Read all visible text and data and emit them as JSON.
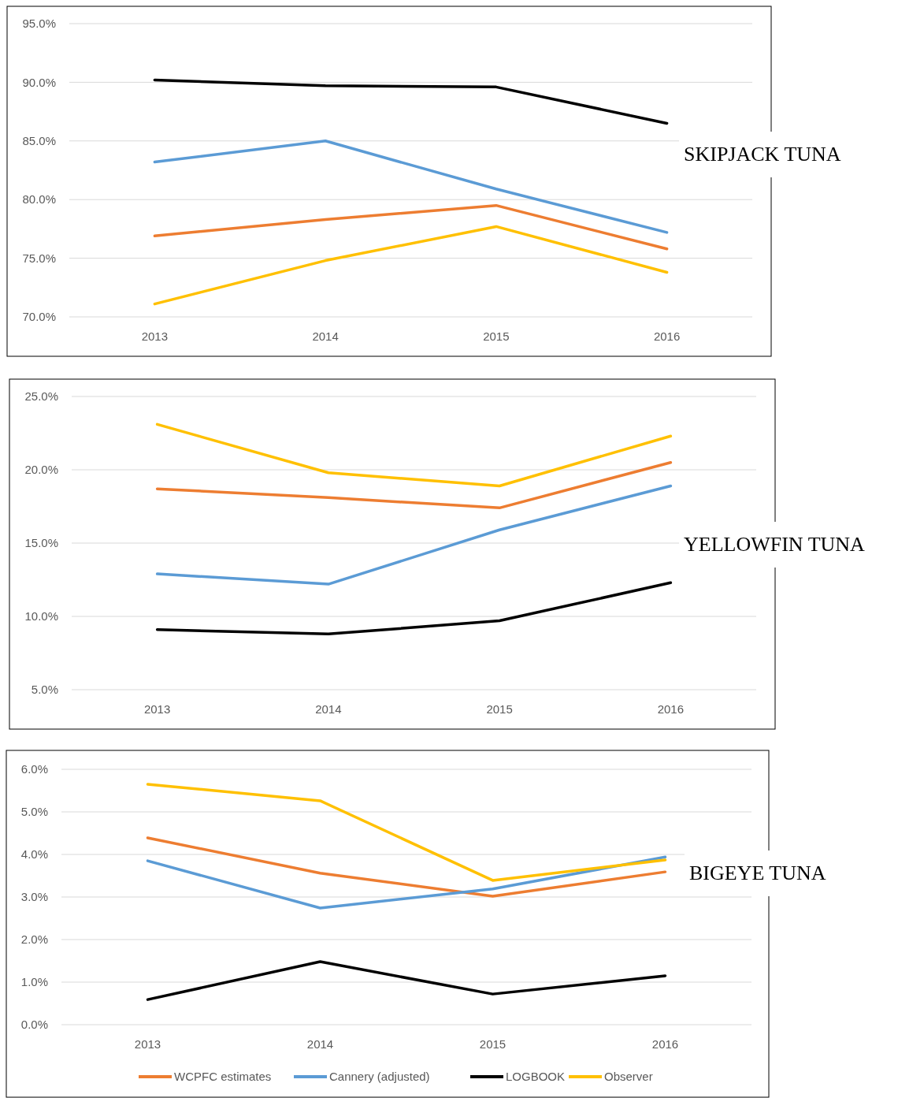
{
  "chart_data": [
    {
      "type": "line",
      "title": "SKIPJACK TUNA",
      "categories": [
        "2013",
        "2014",
        "2015",
        "2016"
      ],
      "ylim": [
        70,
        95
      ],
      "yticks": [
        {
          "value": 70,
          "label": "70.0%"
        },
        {
          "value": 75,
          "label": "75.0%"
        },
        {
          "value": 80,
          "label": "80.0%"
        },
        {
          "value": 85,
          "label": "85.0%"
        },
        {
          "value": 90,
          "label": "90.0%"
        },
        {
          "value": 95,
          "label": "95.0%"
        }
      ],
      "grid": "y",
      "legend": false,
      "marker": "none",
      "series": [
        {
          "color": "#ed7d31",
          "values": [
            76.9,
            78.3,
            79.5,
            75.8
          ]
        },
        {
          "color": "#5b9bd5",
          "values": [
            83.2,
            85.0,
            80.9,
            77.2
          ]
        },
        {
          "color": "#000000",
          "values": [
            90.2,
            89.7,
            89.6,
            86.5
          ]
        },
        {
          "color": "#ffc000",
          "values": [
            71.1,
            74.8,
            77.7,
            73.8
          ]
        }
      ]
    },
    {
      "type": "line",
      "title": "YELLOWFIN TUNA",
      "categories": [
        "2013",
        "2014",
        "2015",
        "2016"
      ],
      "ylim": [
        5,
        25
      ],
      "yticks": [
        {
          "value": 5,
          "label": "5.0%"
        },
        {
          "value": 10,
          "label": "10.0%"
        },
        {
          "value": 15,
          "label": "15.0%"
        },
        {
          "value": 20,
          "label": "20.0%"
        },
        {
          "value": 25,
          "label": "25.0%"
        }
      ],
      "grid": "y",
      "legend": false,
      "marker": "none",
      "series": [
        {
          "color": "#ed7d31",
          "values": [
            18.7,
            18.1,
            17.4,
            20.5
          ]
        },
        {
          "color": "#5b9bd5",
          "values": [
            12.9,
            12.2,
            15.9,
            18.9
          ]
        },
        {
          "color": "#000000",
          "values": [
            9.1,
            8.8,
            9.7,
            12.3
          ]
        },
        {
          "color": "#ffc000",
          "values": [
            23.1,
            19.8,
            18.9,
            22.3
          ]
        }
      ]
    },
    {
      "type": "line",
      "title": "BIGEYE TUNA",
      "categories": [
        "2013",
        "2014",
        "2015",
        "2016"
      ],
      "ylim": [
        0,
        6
      ],
      "yticks": [
        {
          "value": 0,
          "label": "0.0%"
        },
        {
          "value": 1,
          "label": "1.0%"
        },
        {
          "value": 2,
          "label": "2.0%"
        },
        {
          "value": 3,
          "label": "3.0%"
        },
        {
          "value": 4,
          "label": "4.0%"
        },
        {
          "value": 5,
          "label": "5.0%"
        },
        {
          "value": 6,
          "label": "6.0%"
        }
      ],
      "grid": "y",
      "legend": "bottom",
      "marker": "none",
      "series": [
        {
          "name": "WCPFC estimates",
          "color": "#ed7d31",
          "values": [
            4.39,
            3.56,
            3.02,
            3.59
          ]
        },
        {
          "name": "Cannery (adjusted)",
          "color": "#5b9bd5",
          "values": [
            3.85,
            2.74,
            3.19,
            3.94
          ]
        },
        {
          "name": "LOGBOOK",
          "color": "#000000",
          "values": [
            0.59,
            1.48,
            0.72,
            1.15
          ]
        },
        {
          "name": "Observer",
          "color": "#ffc000",
          "values": [
            5.65,
            5.26,
            3.39,
            3.87
          ]
        }
      ]
    }
  ]
}
